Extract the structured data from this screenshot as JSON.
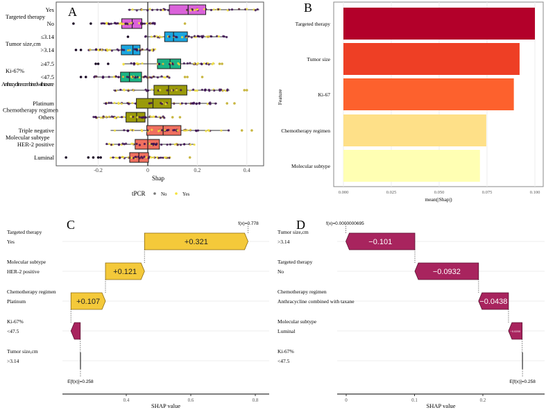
{
  "chart_data": [
    {
      "type": "box",
      "panel": "A",
      "xlabel": "Shap",
      "xlim": [
        -0.37,
        0.46
      ],
      "xticks": [
        -0.2,
        0.0,
        0.2,
        0.4
      ],
      "grid": true,
      "legend": {
        "title": "tPCR",
        "entries": [
          {
            "label": "No",
            "color": "#3b0f50"
          },
          {
            "label": "Yes",
            "color": "#f5e23a"
          }
        ],
        "position": "bottom"
      },
      "groups": [
        {
          "feature": "Targeted therapy",
          "color": "#da62da",
          "levels": [
            {
              "label": "Yes",
              "whisker": [
                -0.08,
                0.45
              ],
              "q1": 0.087,
              "median": 0.163,
              "q3": 0.234,
              "outliers": []
            },
            {
              "label": "No",
              "whisker": [
                -0.19,
                0.03
              ],
              "q1": -0.105,
              "median": -0.063,
              "q3": -0.024,
              "outliers": [
                -0.3,
                -0.23,
                0.15
              ]
            }
          ]
        },
        {
          "feature": "Tumor size,cm",
          "color": "#1aa6e0",
          "levels": [
            {
              "label": "≤3.14",
              "whisker": [
                -0.01,
                0.32
              ],
              "q1": 0.068,
              "median": 0.104,
              "q3": 0.16,
              "outliers": [
                -0.08
              ]
            },
            {
              "label": ">3.14",
              "whisker": [
                -0.24,
                0.03
              ],
              "q1": -0.107,
              "median": -0.06,
              "q3": -0.031,
              "outliers": [
                -0.29,
                -0.27
              ]
            }
          ]
        },
        {
          "feature": "Ki-67%",
          "color": "#1bb584",
          "levels": [
            {
              "label": "≥47.5",
              "whisker": [
                -0.1,
                0.27
              ],
              "q1": 0.039,
              "median": 0.09,
              "q3": 0.133,
              "outliers": [
                -0.21,
                -0.2,
                -0.16,
                0.29,
                0.3
              ]
            },
            {
              "label": "<47.5",
              "whisker": [
                -0.22,
                0.09
              ],
              "q1": -0.11,
              "median": -0.074,
              "q3": -0.025,
              "outliers": [
                -0.27,
                -0.25,
                0.15,
                0.16,
                0.22
              ]
            }
          ]
        },
        {
          "feature": "Chemotherapy regimen",
          "color": "#9a9a0a",
          "levels": [
            {
              "label": "Anthracycline combined with taxane",
              "whisker": [
                -0.14,
                0.33
              ],
              "q1": 0.025,
              "median": 0.084,
              "q3": 0.158,
              "outliers": [
                0.39,
                0.4
              ]
            },
            {
              "label": "Platinum",
              "whisker": [
                -0.18,
                0.28
              ],
              "q1": -0.046,
              "median": 0.021,
              "q3": 0.095,
              "outliers": [
                0.32,
                0.35
              ]
            },
            {
              "label": "Others",
              "whisker": [
                -0.22,
                0.07
              ],
              "q1": -0.088,
              "median": -0.045,
              "q3": -0.011,
              "outliers": [
                0.1,
                0.13
              ]
            }
          ]
        },
        {
          "feature": "Molecular subtype",
          "color": "#f0705f",
          "levels": [
            {
              "label": "Triple negative",
              "whisker": [
                -0.15,
                0.33
              ],
              "q1": -0.004,
              "median": 0.062,
              "q3": 0.134,
              "outliers": [
                0.38,
                0.42
              ]
            },
            {
              "label": "HER-2 positive",
              "whisker": [
                -0.17,
                0.19
              ],
              "q1": -0.051,
              "median": 0.0,
              "q3": 0.047,
              "outliers": []
            },
            {
              "label": "Luminal",
              "whisker": [
                -0.15,
                0.09
              ],
              "q1": -0.073,
              "median": -0.036,
              "q3": 0.003,
              "outliers": [
                -0.33,
                -0.24,
                -0.22,
                -0.2,
                -0.19,
                0.17
              ]
            }
          ]
        }
      ]
    },
    {
      "type": "bar",
      "panel": "B",
      "orientation": "horizontal",
      "xlabel": "mean(|Shap|)",
      "ylabel": "Feature",
      "xlim": [
        0,
        0.1
      ],
      "xticks": [
        "0.000",
        "0.025",
        "0.050",
        "0.075",
        "0.100"
      ],
      "grid": true,
      "categories": [
        "Targeted therapy",
        "Tumor size",
        "Ki-67",
        "Chemotherapy regimen",
        "Molecular subtype"
      ],
      "values": [
        0.1,
        0.092,
        0.089,
        0.0746,
        0.0713
      ],
      "colors": [
        "#b3002a",
        "#ee3f25",
        "#fd612d",
        "#fee088",
        "#ffffb3"
      ]
    },
    {
      "type": "waterfall",
      "panel": "C",
      "xlabel": "SHAP value",
      "xticks": [
        0.4,
        0.6,
        0.8
      ],
      "base": 0.258,
      "base_label": "E[f(x)]=0.258",
      "fx_label": "f(x)=0.778",
      "rows": [
        {
          "feature": "Targeted therapy",
          "value_label": "Yes",
          "shap": 0.321,
          "label": "+0.321"
        },
        {
          "feature": "Molecular subtype",
          "value_label": "HER-2 positive",
          "shap": 0.121,
          "label": "+0.121"
        },
        {
          "feature": "Chemotherapy regimen",
          "value_label": "Platinum",
          "shap": 0.107,
          "label": "+0.107"
        },
        {
          "feature": "Ki-67%",
          "value_label": "<47.5",
          "shap": -0.029,
          "label": ""
        },
        {
          "feature": "Tumor size,cm",
          "value_label": ">3.14",
          "shap": -0.0005,
          "label": ""
        }
      ]
    },
    {
      "type": "waterfall",
      "panel": "D",
      "xlabel": "SHAP value",
      "xticks": [
        0.0,
        0.1,
        0.2
      ],
      "base": 0.258,
      "base_label": "E[f(x)]=0.258",
      "fx_label": "f(x)=0.0000000695",
      "rows": [
        {
          "feature": "Tumor size,cm",
          "value_label": ">3.14",
          "shap": -0.101,
          "label": "−0.101"
        },
        {
          "feature": "Targeted therapy",
          "value_label": "No",
          "shap": -0.0932,
          "label": "−0.0932"
        },
        {
          "feature": "Chemotherapy regimen",
          "value_label": "Anthracycline combined with taxane",
          "shap": -0.0438,
          "label": "−0.0438"
        },
        {
          "feature": "Molecular subtype",
          "value_label": "Luminal",
          "shap": -0.02,
          "label": "−0.0200"
        },
        {
          "feature": "Ki-67%",
          "value_label": "<47.5",
          "shap": -0.0005,
          "label": ""
        }
      ]
    }
  ],
  "panel_labels": [
    "A",
    "B",
    "C",
    "D"
  ],
  "colors": {
    "positive": "#f4c93a",
    "positive_stroke": "#8a6a12",
    "negative": "#a8245e",
    "negative_stroke": "#5a1030"
  }
}
